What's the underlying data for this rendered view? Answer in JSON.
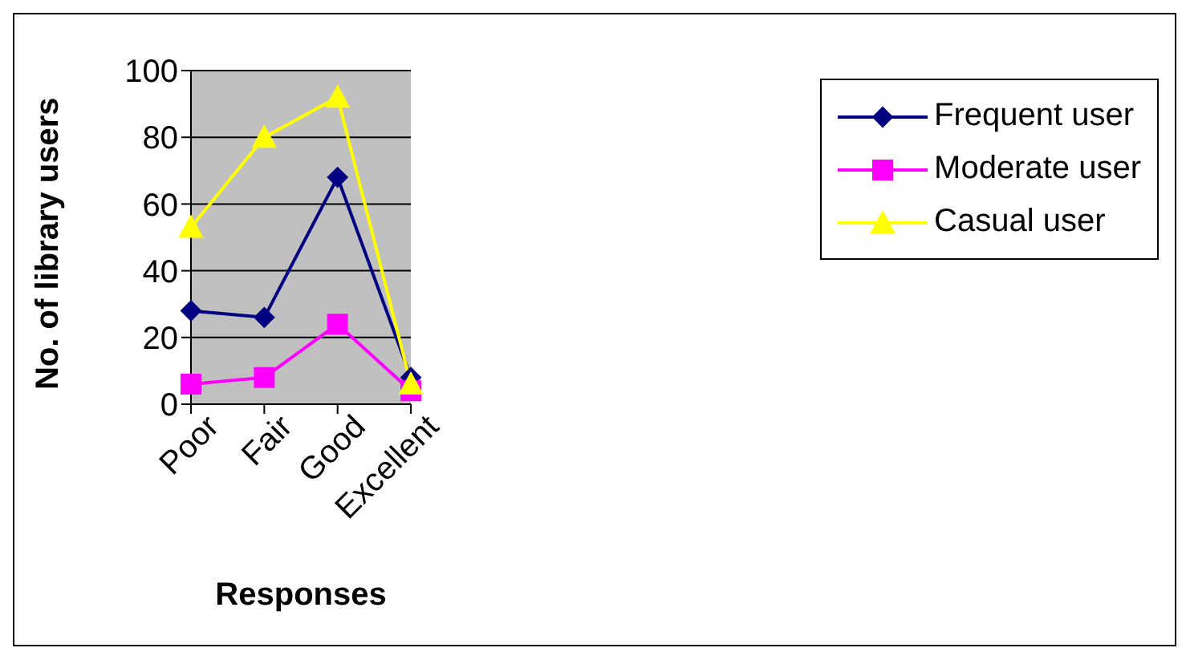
{
  "chart_data": {
    "type": "line",
    "xlabel": "Responses",
    "ylabel": "No. of library users",
    "categories": [
      "Poor",
      "Fair",
      "Good",
      "Excellent"
    ],
    "series": [
      {
        "name": "Frequent user",
        "color": "#000080",
        "marker": "diamond",
        "values": [
          28,
          26,
          68,
          8
        ]
      },
      {
        "name": "Moderate user",
        "color": "#ff00ff",
        "marker": "square",
        "values": [
          6,
          8,
          24,
          4
        ]
      },
      {
        "name": "Casual user",
        "color": "#ffff00",
        "marker": "triangle",
        "values": [
          53,
          80,
          92,
          6
        ]
      }
    ],
    "ylim": [
      0,
      100
    ],
    "yticks": [
      0,
      20,
      40,
      60,
      80,
      100
    ],
    "grid": "y",
    "legend": "right"
  }
}
